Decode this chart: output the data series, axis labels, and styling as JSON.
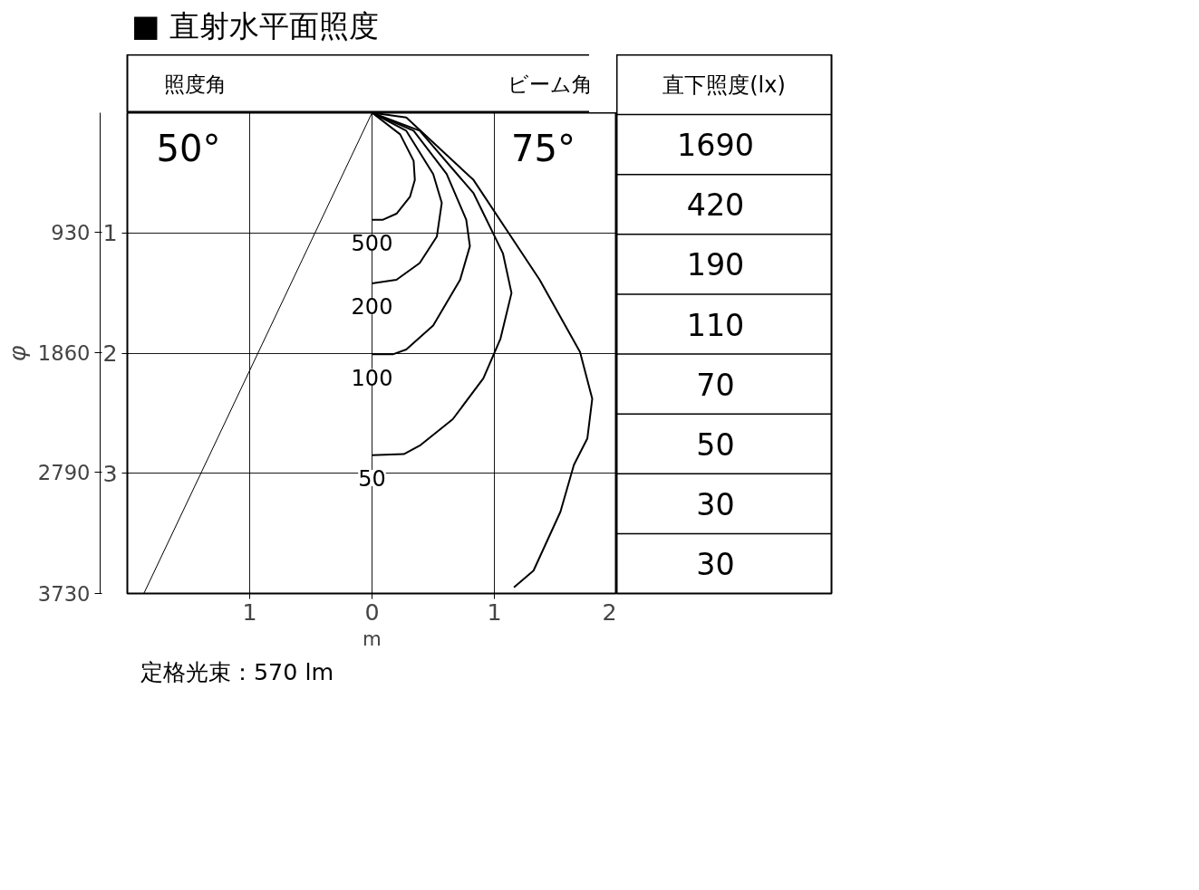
{
  "chart_data": {
    "type": "line",
    "title": "■ 直射水平面照度",
    "xlabel": "m",
    "y2label": "φ",
    "xlim": [
      -2,
      2
    ],
    "xticks": [
      {
        "value": -1,
        "label": "1"
      },
      0,
      1,
      2
    ],
    "ylim": [
      4,
      0
    ],
    "yticks": [
      1,
      2,
      3
    ],
    "y2lim": [
      3730,
      0
    ],
    "y2ticks": [
      930,
      1860,
      2790,
      3730
    ],
    "grid": true,
    "marker": "none",
    "line_style": "solid",
    "series": [
      {
        "x": [
          0,
          -1.865
        ],
        "values": [
          0,
          4
        ],
        "color": "#000000"
      },
      {
        "name": "500",
        "x": [
          0,
          0.23,
          0.34,
          0.35,
          0.31,
          0.2,
          0.09,
          0
        ],
        "values": [
          0,
          0.18,
          0.4,
          0.56,
          0.7,
          0.84,
          0.89,
          0.89
        ],
        "color": "#000000"
      },
      {
        "name": "200",
        "x": [
          0,
          0.28,
          0.5,
          0.57,
          0.53,
          0.39,
          0.2,
          0
        ],
        "values": [
          0,
          0.15,
          0.51,
          0.75,
          1.03,
          1.25,
          1.39,
          1.42
        ],
        "color": "#000000"
      },
      {
        "name": "100",
        "x": [
          0,
          0.34,
          0.61,
          0.77,
          0.8,
          0.72,
          0.5,
          0.28,
          0.17,
          0
        ],
        "values": [
          0,
          0.15,
          0.51,
          0.89,
          1.11,
          1.39,
          1.77,
          1.97,
          2.01,
          2.01
        ],
        "color": "#000000"
      },
      {
        "name": "50",
        "x": [
          0,
          0.39,
          0.83,
          1.07,
          1.14,
          1.05,
          0.91,
          0.66,
          0.39,
          0.26,
          0
        ],
        "values": [
          0,
          0.15,
          0.67,
          1.17,
          1.5,
          1.88,
          2.21,
          2.55,
          2.77,
          2.84,
          2.85
        ],
        "color": "#000000"
      },
      {
        "x": [
          0,
          0.28,
          0.83,
          1.37,
          1.7,
          1.8,
          1.76,
          1.65,
          1.54,
          1.32,
          1.16
        ],
        "values": [
          0,
          0.04,
          0.56,
          1.39,
          1.99,
          2.38,
          2.71,
          2.93,
          3.32,
          3.81,
          3.95
        ],
        "color": "#000000"
      }
    ],
    "annotations": [
      "照度角",
      "ビーム角",
      "50°",
      "75°",
      "直下照度(lx)",
      "1690",
      "420",
      "190",
      "110",
      "70",
      "50",
      "30",
      "30",
      "定格光束：570 lm"
    ]
  }
}
